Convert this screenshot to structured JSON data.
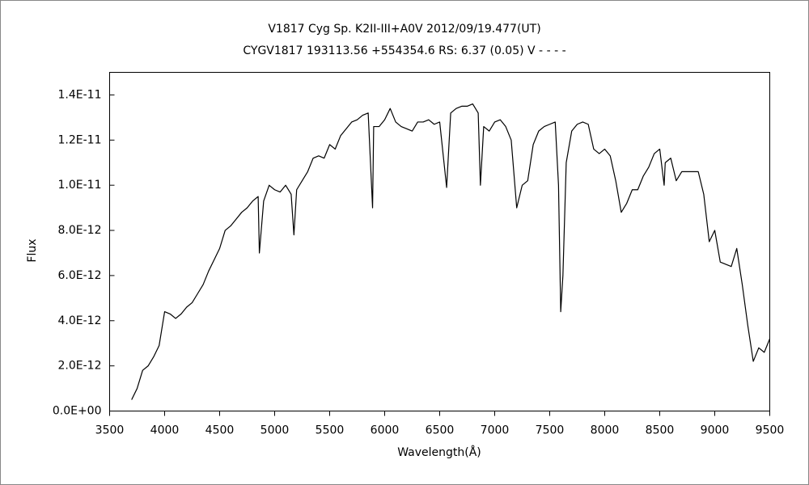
{
  "chart_data": {
    "type": "line",
    "title": "V1817 Cyg    Sp. K2II-III+A0V    2012/09/19.477(UT)",
    "subtitle": "CYGV1817 193113.56 +554354.6 RS: 6.37 (0.05) V - - - -",
    "x_label": "Wavelength(Å)",
    "y_label": "Flux",
    "color": "#000000",
    "x": [
      3700,
      3750,
      3800,
      3850,
      3900,
      3950,
      4000,
      4050,
      4100,
      4150,
      4200,
      4250,
      4300,
      4350,
      4400,
      4450,
      4500,
      4550,
      4600,
      4650,
      4700,
      4750,
      4800,
      4850,
      4861,
      4900,
      4950,
      5000,
      5050,
      5100,
      5150,
      5175,
      5200,
      5250,
      5300,
      5350,
      5400,
      5450,
      5500,
      5550,
      5600,
      5650,
      5700,
      5750,
      5800,
      5850,
      5890,
      5900,
      5950,
      6000,
      6050,
      6100,
      6150,
      6200,
      6250,
      6300,
      6350,
      6400,
      6450,
      6500,
      6563,
      6600,
      6650,
      6700,
      6750,
      6800,
      6850,
      6870,
      6900,
      6950,
      7000,
      7050,
      7100,
      7150,
      7200,
      7250,
      7300,
      7350,
      7400,
      7450,
      7500,
      7550,
      7580,
      7600,
      7620,
      7650,
      7700,
      7750,
      7800,
      7850,
      7900,
      7950,
      8000,
      8050,
      8100,
      8150,
      8200,
      8250,
      8300,
      8350,
      8400,
      8450,
      8500,
      8540,
      8550,
      8600,
      8650,
      8700,
      8750,
      8800,
      8850,
      8900,
      8950,
      9000,
      9050,
      9100,
      9150,
      9200,
      9250,
      9300,
      9350,
      9400,
      9450,
      9500
    ],
    "values": [
      5e-13,
      1e-12,
      1.8e-12,
      2e-12,
      2.4e-12,
      2.9e-12,
      4.4e-12,
      4.3e-12,
      4.1e-12,
      4.3e-12,
      4.6e-12,
      4.8e-12,
      5.2e-12,
      5.6e-12,
      6.2e-12,
      6.7e-12,
      7.2e-12,
      8e-12,
      8.2e-12,
      8.5e-12,
      8.8e-12,
      9e-12,
      9.3e-12,
      9.5e-12,
      7e-12,
      9.3e-12,
      1e-11,
      9.8e-12,
      9.7e-12,
      1e-11,
      9.6e-12,
      7.8e-12,
      9.8e-12,
      1.02e-11,
      1.06e-11,
      1.12e-11,
      1.13e-11,
      1.12e-11,
      1.18e-11,
      1.16e-11,
      1.22e-11,
      1.25e-11,
      1.28e-11,
      1.29e-11,
      1.31e-11,
      1.32e-11,
      9e-12,
      1.26e-11,
      1.26e-11,
      1.29e-11,
      1.34e-11,
      1.28e-11,
      1.26e-11,
      1.25e-11,
      1.24e-11,
      1.28e-11,
      1.28e-11,
      1.29e-11,
      1.27e-11,
      1.28e-11,
      9.9e-12,
      1.32e-11,
      1.34e-11,
      1.35e-11,
      1.35e-11,
      1.36e-11,
      1.32e-11,
      1e-11,
      1.26e-11,
      1.24e-11,
      1.28e-11,
      1.29e-11,
      1.26e-11,
      1.2e-11,
      9e-12,
      1e-11,
      1.02e-11,
      1.18e-11,
      1.24e-11,
      1.26e-11,
      1.27e-11,
      1.28e-11,
      1e-11,
      4.4e-12,
      6e-12,
      1.1e-11,
      1.24e-11,
      1.27e-11,
      1.28e-11,
      1.27e-11,
      1.16e-11,
      1.14e-11,
      1.16e-11,
      1.13e-11,
      1.02e-11,
      8.8e-12,
      9.2e-12,
      9.8e-12,
      9.8e-12,
      1.04e-11,
      1.08e-11,
      1.14e-11,
      1.16e-11,
      1e-11,
      1.1e-11,
      1.12e-11,
      1.02e-11,
      1.06e-11,
      1.06e-11,
      1.06e-11,
      1.06e-11,
      9.6e-12,
      7.5e-12,
      8e-12,
      6.6e-12,
      6.5e-12,
      6.4e-12,
      7.2e-12,
      5.6e-12,
      3.8e-12,
      2.2e-12,
      2.8e-12,
      2.6e-12,
      3.2e-12
    ],
    "xlim": [
      3500,
      9500
    ],
    "ylim": [
      0,
      1.5e-11
    ],
    "xticks": [
      3500,
      4000,
      4500,
      5000,
      5500,
      6000,
      6500,
      7000,
      7500,
      8000,
      8500,
      9000,
      9500
    ],
    "yticks": [
      {
        "value": 0,
        "label": "0.0E+00"
      },
      {
        "value": 2e-12,
        "label": "2.0E-12"
      },
      {
        "value": 4e-12,
        "label": "4.0E-12"
      },
      {
        "value": 6e-12,
        "label": "6.0E-12"
      },
      {
        "value": 8e-12,
        "label": "8.0E-12"
      },
      {
        "value": 1e-11,
        "label": "1.0E-11"
      },
      {
        "value": 1.2e-11,
        "label": "1.2E-11"
      },
      {
        "value": 1.4e-11,
        "label": "1.4E-11"
      }
    ]
  }
}
